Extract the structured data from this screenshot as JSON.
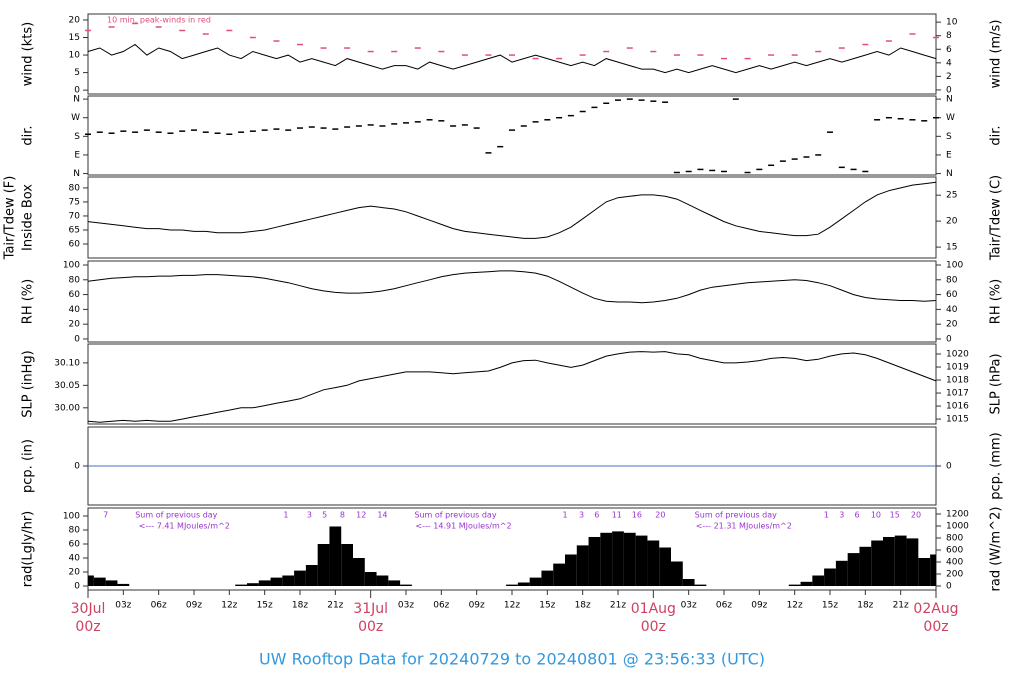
{
  "title": "UW Rooftop Data for 20240729  to  20240801 @ 23:56:33  (UTC)",
  "x_axis": {
    "xlim": [
      0,
      72
    ],
    "x": [
      0,
      1,
      2,
      3,
      4,
      5,
      6,
      7,
      8,
      9,
      10,
      11,
      12,
      13,
      14,
      15,
      16,
      17,
      18,
      19,
      20,
      21,
      22,
      23,
      24,
      25,
      26,
      27,
      28,
      29,
      30,
      31,
      32,
      33,
      34,
      35,
      36,
      37,
      38,
      39,
      40,
      41,
      42,
      43,
      44,
      45,
      46,
      47,
      48,
      49,
      50,
      51,
      52,
      53,
      54,
      55,
      56,
      57,
      58,
      59,
      60,
      61,
      62,
      63,
      64,
      65,
      66,
      67,
      68,
      69,
      70,
      71,
      72
    ],
    "xticks": [
      {
        "value": 3,
        "label": "03z"
      },
      {
        "value": 6,
        "label": "06z"
      },
      {
        "value": 9,
        "label": "09z"
      },
      {
        "value": 12,
        "label": "12z"
      },
      {
        "value": 15,
        "label": "15z"
      },
      {
        "value": 18,
        "label": "18z"
      },
      {
        "value": 21,
        "label": "21z"
      },
      {
        "value": 27,
        "label": "03z"
      },
      {
        "value": 30,
        "label": "06z"
      },
      {
        "value": 33,
        "label": "09z"
      },
      {
        "value": 36,
        "label": "12z"
      },
      {
        "value": 39,
        "label": "15z"
      },
      {
        "value": 42,
        "label": "18z"
      },
      {
        "value": 45,
        "label": "21z"
      },
      {
        "value": 51,
        "label": "03z"
      },
      {
        "value": 54,
        "label": "06z"
      },
      {
        "value": 57,
        "label": "09z"
      },
      {
        "value": 60,
        "label": "12z"
      },
      {
        "value": 63,
        "label": "15z"
      },
      {
        "value": 66,
        "label": "18z"
      },
      {
        "value": 69,
        "label": "21z"
      }
    ],
    "day_ticks": [
      {
        "value": 0,
        "label": "30Jul"
      },
      {
        "value": 24,
        "label": "31Jul"
      },
      {
        "value": 48,
        "label": "01Aug"
      },
      {
        "value": 72,
        "label": "02Aug"
      }
    ],
    "day_hour_ticks": [
      {
        "value": 0,
        "label": "00z"
      },
      {
        "value": 24,
        "label": "00z"
      },
      {
        "value": 48,
        "label": "00z"
      },
      {
        "value": 72,
        "label": "00z"
      }
    ]
  },
  "chart_data": [
    {
      "type": "line",
      "ylabel": "wind (kts)",
      "y2label": "wind (m/s)",
      "annotation": "10 min. peak-winds in red",
      "ylim": [
        -1.1,
        21.7
      ],
      "yticks": [
        0,
        5,
        10,
        15,
        20
      ],
      "y2lim": [
        -0.6,
        11.2
      ],
      "y2ticks": [
        0,
        2,
        4,
        6,
        8,
        10
      ],
      "series": [
        {
          "color": "#000000",
          "values": [
            11,
            12,
            10,
            11,
            13,
            10,
            12,
            11,
            9,
            10,
            11,
            12,
            10,
            9,
            11,
            10,
            9,
            10,
            8,
            9,
            8,
            7,
            9,
            8,
            7,
            6,
            7,
            7,
            6,
            8,
            7,
            6,
            7,
            8,
            9,
            10,
            8,
            9,
            10,
            9,
            8,
            7,
            8,
            7,
            9,
            8,
            7,
            6,
            6,
            5,
            6,
            5,
            6,
            7,
            6,
            5,
            6,
            7,
            6,
            7,
            8,
            7,
            8,
            9,
            8,
            9,
            10,
            11,
            10,
            12,
            11,
            10,
            9
          ]
        },
        {
          "type": "scatter",
          "color": "#e0507a",
          "x": [
            0,
            2,
            4,
            6,
            8,
            10,
            12,
            14,
            16,
            18,
            20,
            22,
            24,
            26,
            28,
            30,
            32,
            34,
            36,
            38,
            40,
            42,
            44,
            46,
            48,
            50,
            52,
            54,
            56,
            58,
            60,
            62,
            64,
            66,
            68,
            70,
            72
          ],
          "values": [
            17,
            18,
            19,
            18,
            17,
            16,
            17,
            15,
            14,
            13,
            12,
            12,
            11,
            11,
            12,
            11,
            10,
            10,
            10,
            9,
            9,
            10,
            11,
            12,
            11,
            10,
            10,
            9,
            9,
            10,
            10,
            11,
            12,
            13,
            14,
            16,
            15
          ]
        }
      ]
    },
    {
      "type": "scatter",
      "ylabel": "dir.",
      "y2label": "dir.",
      "ylim": [
        -7,
        375
      ],
      "yticks": [
        {
          "value": 0,
          "label": "N"
        },
        {
          "value": 90,
          "label": "E"
        },
        {
          "value": 180,
          "label": "S"
        },
        {
          "value": 270,
          "label": "W"
        },
        {
          "value": 360,
          "label": "N"
        }
      ],
      "y2lim": [
        -7,
        375
      ],
      "y2ticks": [
        {
          "value": 0,
          "label": "N"
        },
        {
          "value": 90,
          "label": "E"
        },
        {
          "value": 180,
          "label": "S"
        },
        {
          "value": 270,
          "label": "W"
        },
        {
          "value": 360,
          "label": "N"
        }
      ],
      "series": [
        {
          "color": "#000000",
          "values": [
            190,
            200,
            195,
            205,
            200,
            210,
            200,
            195,
            205,
            210,
            200,
            195,
            190,
            200,
            205,
            210,
            215,
            210,
            220,
            225,
            220,
            215,
            225,
            230,
            235,
            230,
            240,
            245,
            250,
            260,
            255,
            230,
            235,
            220,
            100,
            130,
            210,
            230,
            250,
            260,
            270,
            280,
            300,
            320,
            340,
            355,
            360,
            355,
            350,
            345,
            5,
            10,
            20,
            15,
            10,
            360,
            5,
            20,
            40,
            60,
            70,
            80,
            90,
            200,
            30,
            20,
            10,
            260,
            270,
            265,
            260,
            255,
            270
          ]
        }
      ]
    },
    {
      "type": "line",
      "ylabel": "Tair/Tdew (F)",
      "ylabel_inner": "Inside Box",
      "y2label": "Tair/Tdew (C)",
      "ylim": [
        55,
        83.9
      ],
      "yticks": [
        60,
        65,
        70,
        75,
        80
      ],
      "y2lim": [
        12.9,
        28.5
      ],
      "y2ticks": [
        15,
        20,
        25
      ],
      "series": [
        {
          "color": "#000000",
          "values": [
            68,
            67.5,
            67,
            66.5,
            66,
            65.5,
            65.5,
            65,
            65,
            64.5,
            64.5,
            64,
            64,
            64,
            64.5,
            65,
            66,
            67,
            68,
            69,
            70,
            71,
            72,
            73,
            73.5,
            73,
            72.5,
            71.5,
            70,
            68.5,
            67,
            65.5,
            64.5,
            64,
            63.5,
            63,
            62.5,
            62,
            62,
            62.5,
            64,
            66,
            69,
            72,
            75,
            76.5,
            77,
            77.5,
            77.5,
            77,
            76,
            74,
            72,
            70,
            68,
            66.5,
            65.5,
            64.5,
            64,
            63.5,
            63,
            63,
            63.5,
            66,
            69,
            72,
            75,
            77.5,
            79,
            80,
            81,
            81.5,
            82
          ]
        }
      ]
    },
    {
      "type": "line",
      "ylabel": "RH (%)",
      "y2label": "RH (%)",
      "ylim": [
        -4.1,
        105.4
      ],
      "yticks": [
        0,
        20,
        40,
        60,
        80,
        100
      ],
      "y2lim": [
        -4.1,
        105.4
      ],
      "y2ticks": [
        0,
        20,
        40,
        60,
        80,
        100
      ],
      "series": [
        {
          "color": "#000000",
          "values": [
            78,
            80,
            82,
            83,
            84,
            84,
            85,
            85,
            86,
            86,
            87,
            87,
            86,
            85,
            84,
            82,
            79,
            76,
            72,
            68,
            65,
            63,
            62,
            62,
            63,
            65,
            68,
            72,
            76,
            80,
            84,
            87,
            89,
            90,
            91,
            92,
            92,
            91,
            89,
            85,
            78,
            70,
            62,
            55,
            51,
            50,
            50,
            49,
            50,
            52,
            55,
            60,
            66,
            70,
            72,
            74,
            76,
            77,
            78,
            79,
            80,
            79,
            76,
            72,
            66,
            60,
            56,
            54,
            53,
            52,
            52,
            51,
            52
          ]
        }
      ]
    },
    {
      "type": "line",
      "ylabel": "SLP (inHg)",
      "y2label": "SLP (hPa)",
      "ylim": [
        29.964,
        30.142
      ],
      "yticks": [
        {
          "value": 30,
          "label": "30.00"
        },
        30.05,
        {
          "value": 30.1,
          "label": "30.10"
        }
      ],
      "y2lim": [
        1014.62,
        1020.77
      ],
      "y2ticks": [
        1015,
        1016,
        1017,
        1018,
        1019,
        1020
      ],
      "series": [
        {
          "color": "#000000",
          "values": [
            29.97,
            29.968,
            29.97,
            29.972,
            29.97,
            29.972,
            29.97,
            29.97,
            29.975,
            29.98,
            29.985,
            29.99,
            29.995,
            30.0,
            30.0,
            30.005,
            30.01,
            30.015,
            30.02,
            30.03,
            30.04,
            30.045,
            30.05,
            30.06,
            30.065,
            30.07,
            30.075,
            30.08,
            30.08,
            30.08,
            30.078,
            30.076,
            30.078,
            30.08,
            30.082,
            30.09,
            30.1,
            30.105,
            30.106,
            30.1,
            30.095,
            30.09,
            30.095,
            30.105,
            30.115,
            30.12,
            30.124,
            30.125,
            30.124,
            30.125,
            30.12,
            30.118,
            30.11,
            30.105,
            30.1,
            30.1,
            30.102,
            30.105,
            30.11,
            30.112,
            30.11,
            30.105,
            30.108,
            30.115,
            30.12,
            30.122,
            30.118,
            30.11,
            30.1,
            30.09,
            30.08,
            30.07,
            30.06
          ]
        }
      ]
    },
    {
      "type": "line",
      "ylabel": "pcp. (in)",
      "y2label": "pcp. (mm)",
      "ylim": [
        -1,
        1
      ],
      "yticks": [
        0
      ],
      "y2lim": [
        -1,
        1
      ],
      "y2ticks": [
        0
      ],
      "series": [
        {
          "color": "#4a6fc4",
          "x": [
            0,
            72
          ],
          "values": [
            0,
            0
          ]
        }
      ]
    },
    {
      "type": "bar",
      "ylabel": "rad(Lgly/hr)",
      "y2label": "rad (W/m^2)",
      "ylim": [
        -5.7,
        111.4
      ],
      "yticks": [
        0,
        20,
        40,
        60,
        80,
        100
      ],
      "y2lim": [
        -67,
        1300
      ],
      "y2ticks": [
        0,
        200,
        400,
        600,
        800,
        1000,
        1200
      ],
      "annotation_color": "#9933cc",
      "day_sums": [
        {
          "x": 7.5,
          "title": "Sum of previous day",
          "total": "<--- 7.41 MJoules/m^2"
        },
        {
          "x": 31.2,
          "title": "Sum of previous day",
          "total": "<--- 14.91 MJoules/m^2"
        },
        {
          "x": 55,
          "title": "Sum of previous day",
          "total": "<--- 21.31 MJoules/m^2"
        }
      ],
      "local_hours": [
        {
          "x": 1.5,
          "label": "7"
        },
        {
          "x": 16.8,
          "label": "1"
        },
        {
          "x": 18.8,
          "label": "3"
        },
        {
          "x": 20.1,
          "label": "5"
        },
        {
          "x": 21.6,
          "label": "8"
        },
        {
          "x": 23.2,
          "label": "12"
        },
        {
          "x": 25,
          "label": "14"
        },
        {
          "x": 40.5,
          "label": "1"
        },
        {
          "x": 41.9,
          "label": "3"
        },
        {
          "x": 43.2,
          "label": "6"
        },
        {
          "x": 44.9,
          "label": "11"
        },
        {
          "x": 46.6,
          "label": "16"
        },
        {
          "x": 48.6,
          "label": "20"
        },
        {
          "x": 62.7,
          "label": "1"
        },
        {
          "x": 64,
          "label": "3"
        },
        {
          "x": 65.3,
          "label": "6"
        },
        {
          "x": 66.9,
          "label": "10"
        },
        {
          "x": 68.5,
          "label": "15"
        },
        {
          "x": 70.3,
          "label": "20"
        }
      ],
      "series": [
        {
          "color": "#000000",
          "values": [
            15,
            12,
            8,
            3,
            0,
            0,
            0,
            0,
            0,
            0,
            0,
            0,
            0,
            2,
            4,
            8,
            12,
            15,
            22,
            30,
            60,
            85,
            60,
            40,
            20,
            15,
            8,
            2,
            0,
            0,
            0,
            0,
            0,
            0,
            0,
            0,
            2,
            5,
            12,
            22,
            32,
            45,
            58,
            70,
            76,
            78,
            76,
            72,
            65,
            55,
            35,
            10,
            2,
            0,
            0,
            0,
            0,
            0,
            0,
            0,
            2,
            6,
            15,
            25,
            36,
            47,
            56,
            65,
            70,
            72,
            68,
            40,
            45
          ]
        }
      ]
    }
  ]
}
